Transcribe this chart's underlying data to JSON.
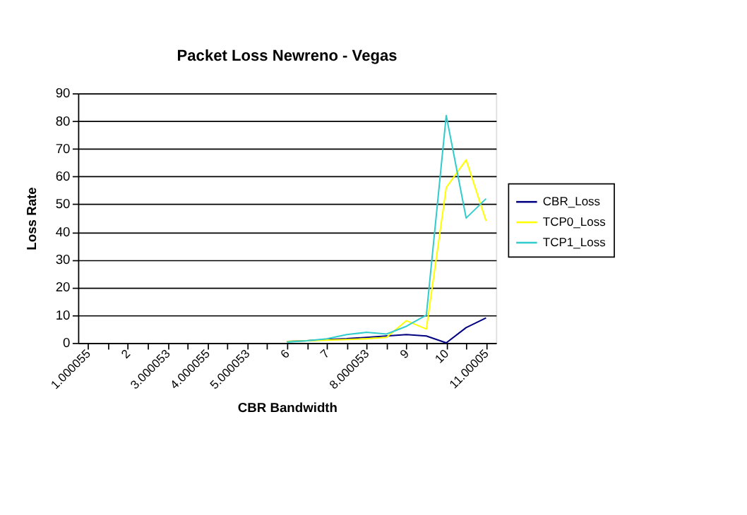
{
  "chart_data": {
    "type": "line",
    "title": "Packet Loss Newreno - Vegas",
    "xlabel": "CBR Bandwidth",
    "ylabel": "Loss Rate",
    "categories": [
      "1.000055",
      null,
      "2",
      null,
      "3.000053",
      null,
      "4.000055",
      null,
      "5.000053",
      null,
      "6",
      null,
      "7",
      null,
      "8.000053",
      null,
      "9",
      null,
      "10",
      null,
      "11.00005"
    ],
    "series": [
      {
        "name": "CBR_Loss",
        "color": "#000080",
        "values": [
          null,
          null,
          null,
          null,
          null,
          null,
          null,
          null,
          null,
          null,
          0.5,
          0.8,
          1.2,
          1.5,
          2,
          2.5,
          3,
          2.5,
          0,
          5.5,
          9
        ]
      },
      {
        "name": "TCP0_Loss",
        "color": "#ffff00",
        "values": [
          null,
          null,
          null,
          null,
          null,
          null,
          null,
          null,
          null,
          null,
          0.5,
          0.8,
          1,
          1.2,
          1.5,
          2,
          8,
          5,
          56,
          66,
          44
        ]
      },
      {
        "name": "TCP1_Loss",
        "color": "#33cccc",
        "values": [
          null,
          null,
          null,
          null,
          null,
          null,
          null,
          null,
          null,
          null,
          0.3,
          0.8,
          1.5,
          3,
          3.8,
          3.2,
          6,
          10,
          82,
          45,
          52
        ]
      }
    ],
    "ylim": [
      0,
      90
    ],
    "yticks": [
      0,
      10,
      20,
      30,
      40,
      50,
      60,
      70,
      80,
      90
    ],
    "grid": "y",
    "legend": "right",
    "marker": "none",
    "line_style": "solid"
  }
}
